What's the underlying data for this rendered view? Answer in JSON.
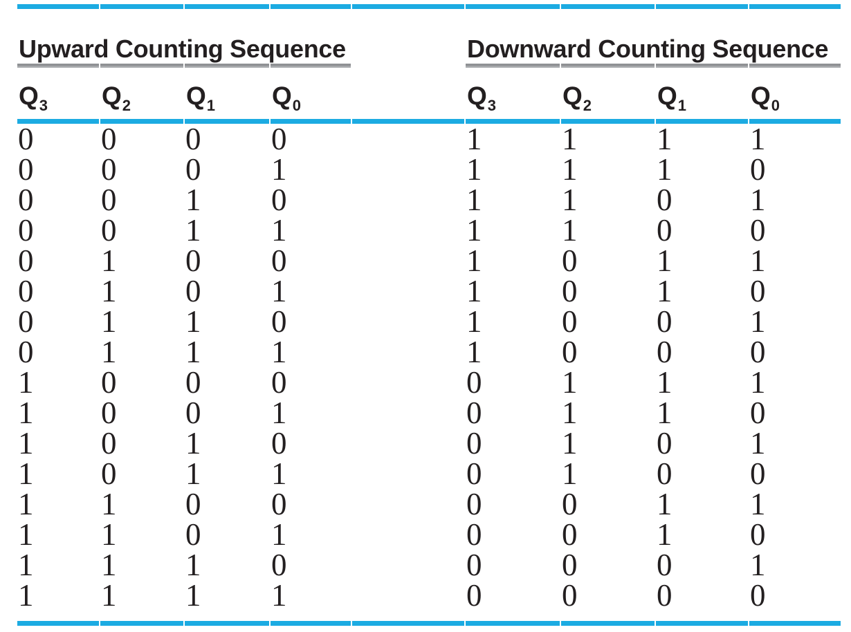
{
  "figure": {
    "colors": {
      "accent_cyan": "#1CABE2",
      "rule_gray": "#9D9FA2",
      "text": "#231F20"
    },
    "sections": [
      {
        "id": "upward",
        "title": "Upward Counting Sequence",
        "headers": [
          {
            "base": "Q",
            "sub": "3"
          },
          {
            "base": "Q",
            "sub": "2"
          },
          {
            "base": "Q",
            "sub": "1"
          },
          {
            "base": "Q",
            "sub": "0"
          }
        ],
        "rows": [
          [
            "0",
            "0",
            "0",
            "0"
          ],
          [
            "0",
            "0",
            "0",
            "1"
          ],
          [
            "0",
            "0",
            "1",
            "0"
          ],
          [
            "0",
            "0",
            "1",
            "1"
          ],
          [
            "0",
            "1",
            "0",
            "0"
          ],
          [
            "0",
            "1",
            "0",
            "1"
          ],
          [
            "0",
            "1",
            "1",
            "0"
          ],
          [
            "0",
            "1",
            "1",
            "1"
          ],
          [
            "1",
            "0",
            "0",
            "0"
          ],
          [
            "1",
            "0",
            "0",
            "1"
          ],
          [
            "1",
            "0",
            "1",
            "0"
          ],
          [
            "1",
            "0",
            "1",
            "1"
          ],
          [
            "1",
            "1",
            "0",
            "0"
          ],
          [
            "1",
            "1",
            "0",
            "1"
          ],
          [
            "1",
            "1",
            "1",
            "0"
          ],
          [
            "1",
            "1",
            "1",
            "1"
          ]
        ]
      },
      {
        "id": "downward",
        "title": "Downward Counting Sequence",
        "headers": [
          {
            "base": "Q",
            "sub": "3"
          },
          {
            "base": "Q",
            "sub": "2"
          },
          {
            "base": "Q",
            "sub": "1"
          },
          {
            "base": "Q",
            "sub": "0"
          }
        ],
        "rows": [
          [
            "1",
            "1",
            "1",
            "1"
          ],
          [
            "1",
            "1",
            "1",
            "0"
          ],
          [
            "1",
            "1",
            "0",
            "1"
          ],
          [
            "1",
            "1",
            "0",
            "0"
          ],
          [
            "1",
            "0",
            "1",
            "1"
          ],
          [
            "1",
            "0",
            "1",
            "0"
          ],
          [
            "1",
            "0",
            "0",
            "1"
          ],
          [
            "1",
            "0",
            "0",
            "0"
          ],
          [
            "0",
            "1",
            "1",
            "1"
          ],
          [
            "0",
            "1",
            "1",
            "0"
          ],
          [
            "0",
            "1",
            "0",
            "1"
          ],
          [
            "0",
            "1",
            "0",
            "0"
          ],
          [
            "0",
            "0",
            "1",
            "1"
          ],
          [
            "0",
            "0",
            "1",
            "0"
          ],
          [
            "0",
            "0",
            "0",
            "1"
          ],
          [
            "0",
            "0",
            "0",
            "0"
          ]
        ]
      }
    ]
  }
}
